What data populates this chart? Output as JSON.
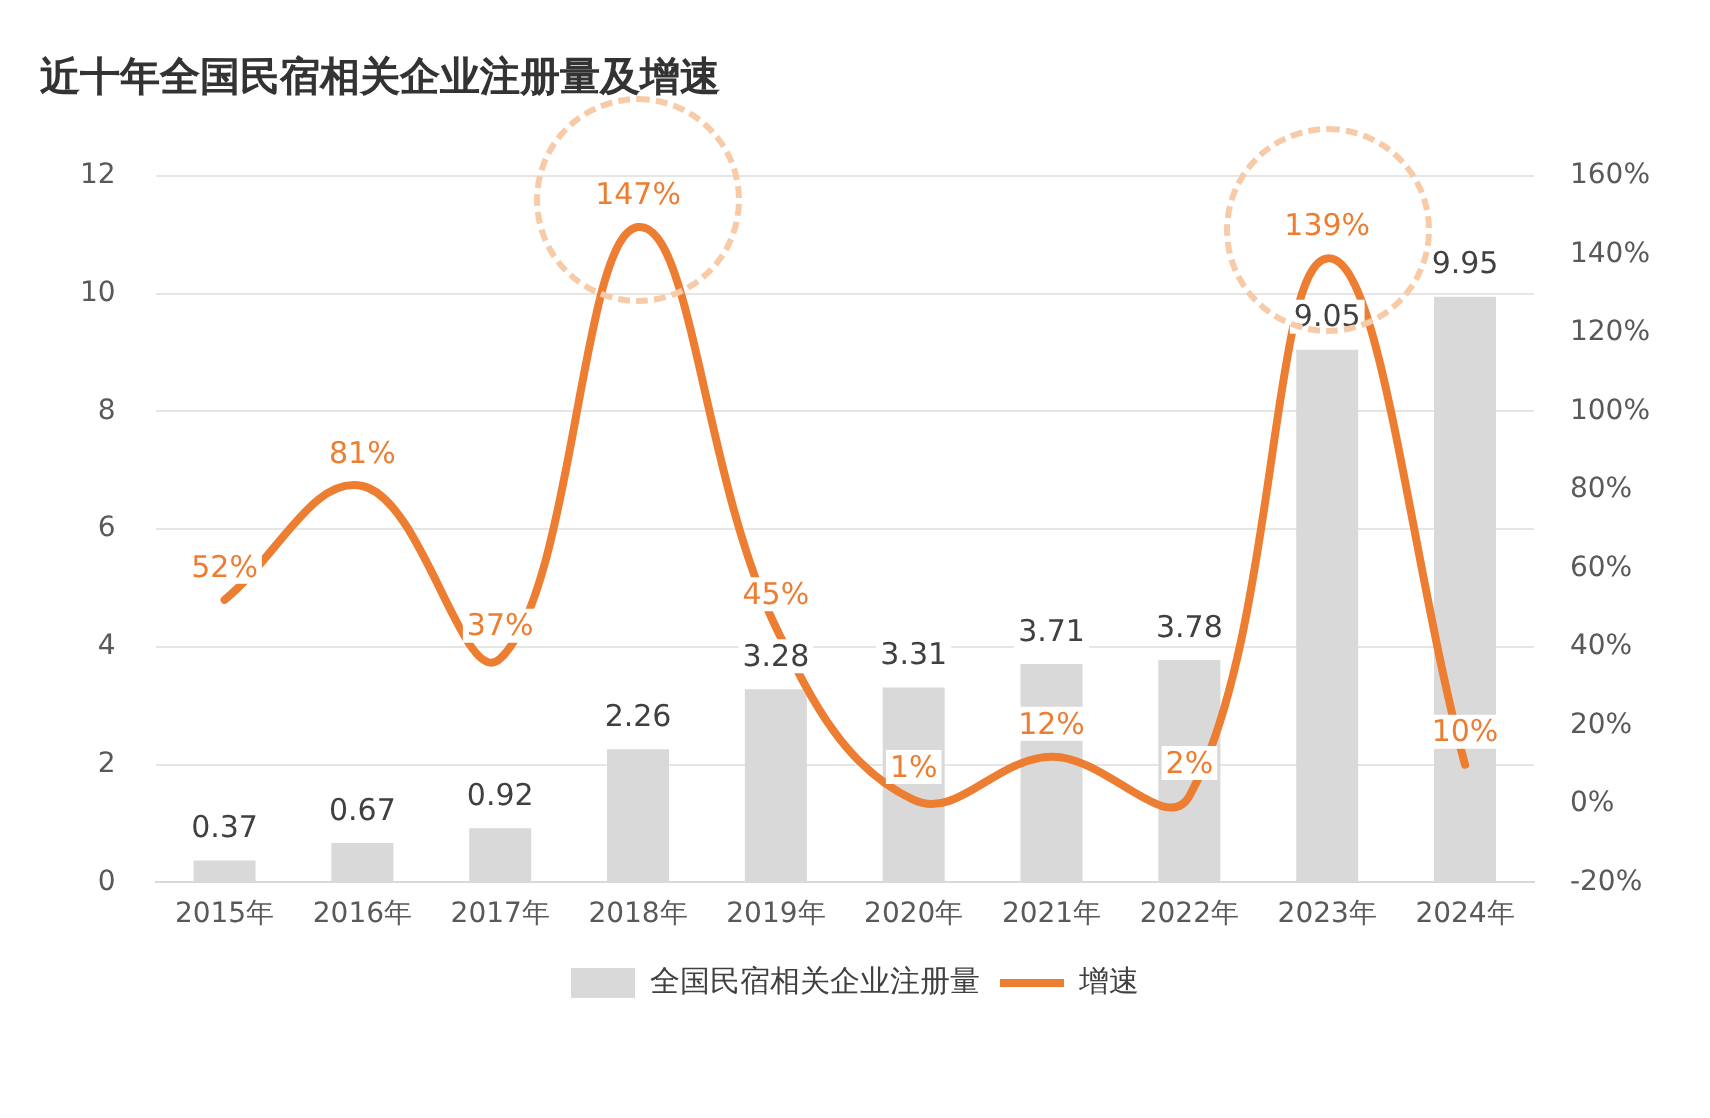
{
  "chart_data": {
    "type": "bar",
    "title": "近十年全国民宿相关企业注册量及增速",
    "categories": [
      "2015年",
      "2016年",
      "2017年",
      "2018年",
      "2019年",
      "2020年",
      "2021年",
      "2022年",
      "2023年",
      "2024年"
    ],
    "series": [
      {
        "name": "全国民宿相关企业注册量",
        "color": "#d9d9d9",
        "values": [
          0.37,
          0.67,
          0.92,
          2.26,
          3.28,
          3.31,
          3.71,
          3.78,
          9.05,
          9.95
        ],
        "value_labels": [
          "0.37",
          "0.67",
          "0.92",
          "2.26",
          "3.28",
          "3.31",
          "3.71",
          "3.78",
          "9.05",
          "9.95"
        ]
      },
      {
        "name": "增速",
        "type": "line",
        "axis": "y2",
        "color": "#ed7d31",
        "marker": "none",
        "values": [
          52,
          81,
          37,
          147,
          45,
          1,
          12,
          2,
          139,
          10
        ],
        "value_labels": [
          "52%",
          "81%",
          "37%",
          "147%",
          "45%",
          "1%",
          "12%",
          "2%",
          "139%",
          "10%"
        ]
      }
    ],
    "ylim": [
      0,
      12
    ],
    "yticks": [
      0,
      2,
      4,
      6,
      8,
      10,
      12
    ],
    "y2lim": [
      -20,
      160
    ],
    "y2ticks": [
      {
        "value": -20,
        "label": "-20%"
      },
      {
        "value": 0,
        "label": "0%"
      },
      {
        "value": 20,
        "label": "20%"
      },
      {
        "value": 40,
        "label": "40%"
      },
      {
        "value": 60,
        "label": "60%"
      },
      {
        "value": 80,
        "label": "80%"
      },
      {
        "value": 100,
        "label": "100%"
      },
      {
        "value": 120,
        "label": "120%"
      },
      {
        "value": 140,
        "label": "140%"
      },
      {
        "value": 160,
        "label": "160%"
      }
    ],
    "grid": "y",
    "legend": "bottom"
  }
}
